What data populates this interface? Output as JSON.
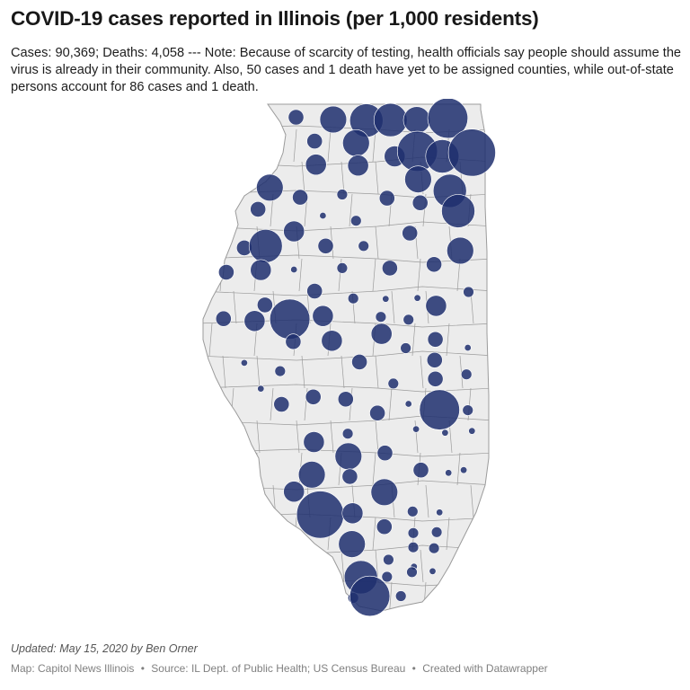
{
  "header": {
    "title": "COVID-19 cases reported in Illinois (per 1,000 residents)",
    "description": "Cases: 90,369; Deaths: 4,058 --- Note: Because of scarcity of testing, health officials say people should assume the virus is already in their community. Also, 50 cases and 1 death have yet to be assigned counties, while out-of-state persons account for 86 cases and 1 death."
  },
  "colors": {
    "land": "#ececec",
    "border": "#9b9b9b",
    "bubble": "#1f2f6e",
    "bubble_opacity": 0.85
  },
  "map_data": {
    "type": "proportional-symbol",
    "region": "Illinois counties",
    "size_levels": [
      1,
      2,
      3,
      4,
      5,
      6,
      7,
      8
    ],
    "symbols": [
      [
        0.429,
        0.04,
        3
      ],
      [
        0.483,
        0.045,
        5
      ],
      [
        0.531,
        0.047,
        6
      ],
      [
        0.566,
        0.046,
        6
      ],
      [
        0.604,
        0.046,
        5
      ],
      [
        0.649,
        0.042,
        7
      ],
      [
        0.456,
        0.092,
        3
      ],
      [
        0.516,
        0.096,
        5
      ],
      [
        0.572,
        0.125,
        4
      ],
      [
        0.605,
        0.114,
        7
      ],
      [
        0.641,
        0.125,
        6
      ],
      [
        0.684,
        0.117,
        8
      ],
      [
        0.458,
        0.143,
        4
      ],
      [
        0.519,
        0.145,
        4
      ],
      [
        0.606,
        0.175,
        5
      ],
      [
        0.652,
        0.2,
        6
      ],
      [
        0.391,
        0.193,
        5
      ],
      [
        0.435,
        0.214,
        3
      ],
      [
        0.496,
        0.208,
        2
      ],
      [
        0.561,
        0.216,
        3
      ],
      [
        0.609,
        0.226,
        3
      ],
      [
        0.664,
        0.244,
        6
      ],
      [
        0.374,
        0.24,
        3
      ],
      [
        0.468,
        0.254,
        1
      ],
      [
        0.516,
        0.265,
        2
      ],
      [
        0.426,
        0.288,
        4
      ],
      [
        0.354,
        0.324,
        3
      ],
      [
        0.385,
        0.32,
        6
      ],
      [
        0.472,
        0.32,
        3
      ],
      [
        0.527,
        0.32,
        2
      ],
      [
        0.594,
        0.292,
        3
      ],
      [
        0.667,
        0.33,
        5
      ],
      [
        0.629,
        0.36,
        3
      ],
      [
        0.328,
        0.377,
        3
      ],
      [
        0.378,
        0.372,
        4
      ],
      [
        0.426,
        0.371,
        1
      ],
      [
        0.496,
        0.368,
        2
      ],
      [
        0.565,
        0.368,
        3
      ],
      [
        0.456,
        0.418,
        3
      ],
      [
        0.512,
        0.434,
        2
      ],
      [
        0.559,
        0.435,
        1
      ],
      [
        0.605,
        0.433,
        1
      ],
      [
        0.632,
        0.45,
        4
      ],
      [
        0.679,
        0.42,
        2
      ],
      [
        0.324,
        0.478,
        3
      ],
      [
        0.384,
        0.448,
        3
      ],
      [
        0.369,
        0.483,
        4
      ],
      [
        0.42,
        0.479,
        7
      ],
      [
        0.468,
        0.472,
        4
      ],
      [
        0.552,
        0.474,
        2
      ],
      [
        0.592,
        0.48,
        2
      ],
      [
        0.425,
        0.528,
        3
      ],
      [
        0.481,
        0.526,
        4
      ],
      [
        0.553,
        0.511,
        4
      ],
      [
        0.588,
        0.542,
        2
      ],
      [
        0.631,
        0.523,
        3
      ],
      [
        0.678,
        0.541,
        1
      ],
      [
        0.354,
        0.574,
        1
      ],
      [
        0.406,
        0.592,
        2
      ],
      [
        0.521,
        0.572,
        3
      ],
      [
        0.63,
        0.568,
        3
      ],
      [
        0.57,
        0.619,
        2
      ],
      [
        0.631,
        0.609,
        3
      ],
      [
        0.676,
        0.599,
        2
      ],
      [
        0.378,
        0.63,
        1
      ],
      [
        0.454,
        0.648,
        3
      ],
      [
        0.501,
        0.653,
        3
      ],
      [
        0.408,
        0.664,
        3
      ],
      [
        0.592,
        0.663,
        1
      ],
      [
        0.637,
        0.676,
        7
      ],
      [
        0.678,
        0.677,
        2
      ],
      [
        0.547,
        0.683,
        3
      ],
      [
        0.455,
        0.746,
        4
      ],
      [
        0.504,
        0.728,
        2
      ],
      [
        0.603,
        0.718,
        1
      ],
      [
        0.645,
        0.726,
        1
      ],
      [
        0.684,
        0.722,
        1
      ],
      [
        0.505,
        0.777,
        5
      ],
      [
        0.558,
        0.77,
        3
      ],
      [
        0.452,
        0.817,
        5
      ],
      [
        0.507,
        0.821,
        3
      ],
      [
        0.61,
        0.807,
        3
      ],
      [
        0.65,
        0.813,
        1
      ],
      [
        0.672,
        0.807,
        1
      ],
      [
        0.426,
        0.854,
        4
      ],
      [
        0.557,
        0.855,
        5
      ],
      [
        0.464,
        0.904,
        8
      ],
      [
        0.511,
        0.901,
        4
      ],
      [
        0.598,
        0.897,
        2
      ],
      [
        0.637,
        0.899,
        1
      ],
      [
        0.557,
        0.93,
        3
      ],
      [
        0.599,
        0.944,
        2
      ],
      [
        0.633,
        0.942,
        2
      ],
      [
        0.51,
        0.968,
        5
      ],
      [
        0.599,
        0.975,
        2
      ],
      [
        0.629,
        0.977,
        2
      ],
      [
        0.563,
        1.002,
        2
      ],
      [
        0.6,
        1.017,
        1
      ],
      [
        0.523,
        1.04,
        6
      ],
      [
        0.561,
        1.039,
        2
      ],
      [
        0.597,
        1.029,
        2
      ],
      [
        0.627,
        1.027,
        1
      ],
      [
        0.512,
        1.085,
        2
      ],
      [
        0.536,
        1.081,
        7
      ],
      [
        0.581,
        1.081,
        2
      ]
    ]
  },
  "footer": {
    "updated": "Updated: May 15, 2020 by Ben Orner",
    "map_credit": "Map: Capitol News Illinois",
    "source": "Source: IL Dept. of Public Health; US Census Bureau",
    "created_with": "Created with Datawrapper"
  }
}
